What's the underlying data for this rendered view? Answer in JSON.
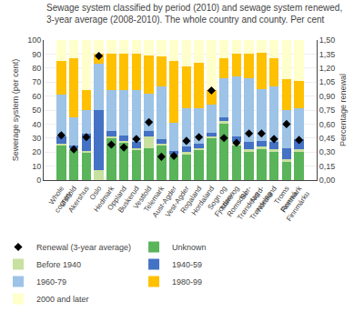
{
  "chart_data": {
    "type": "bar",
    "stacked": true,
    "title": "Sewage system classified by period (2010) and sewage system renewed,\n3-year average (2008-2010). The whole country and county. Per cent",
    "y_label": "Sewerage system (per cent)",
    "y2_label": "Percentage renewal",
    "categories": [
      "Whole\ncountry",
      "Østfold",
      "Akershus",
      "Oslo",
      "Hedmark",
      "Oppland",
      "Buskerud",
      "Vestfold",
      "Telemark",
      "Aust-Agder",
      "Vest-Agder",
      "Rogaland",
      "Hordaland",
      "Sogn og\nFjordane",
      "Møre og\nRomsdal",
      "Sør-\nTrøndelag",
      "Nord-\nTrøndelag",
      "Nordland",
      "Troms\nRomsá",
      "Finnmark\nFinnmárku"
    ],
    "series": [
      {
        "name": "Renewal (3-year average)",
        "type": "scatter",
        "marker": "diamond",
        "color": "#000000",
        "axis": "y2",
        "values": [
          0.48,
          0.33,
          0.46,
          1.33,
          0.38,
          0.35,
          0.44,
          0.62,
          0.25,
          0.26,
          0.42,
          0.46,
          0.96,
          0.45,
          0.4,
          0.5,
          0.5,
          0.44,
          0.6,
          0.43
        ]
      },
      {
        "name": "Unknown",
        "type": "bar",
        "color": "#5ab45a",
        "values": [
          25,
          22,
          20,
          0,
          30,
          27,
          22,
          23,
          25,
          17,
          18,
          22,
          30,
          40,
          25,
          20,
          22,
          20,
          13,
          20
        ]
      },
      {
        "name": "Before 1940",
        "type": "bar",
        "color": "#c8e0a0",
        "values": [
          1,
          1,
          1,
          7,
          1,
          1,
          1,
          8,
          1,
          1,
          2,
          1,
          1,
          2,
          2,
          2,
          2,
          2,
          2,
          2
        ]
      },
      {
        "name": "1940-59",
        "type": "bar",
        "color": "#4472c4",
        "values": [
          5,
          2,
          12,
          43,
          4,
          4,
          4,
          4,
          3,
          3,
          4,
          3,
          3,
          3,
          4,
          5,
          4,
          5,
          8,
          7
        ]
      },
      {
        "name": "1960-79",
        "type": "bar",
        "color": "#9dc3e6",
        "values": [
          30,
          20,
          17,
          33,
          29,
          32,
          37,
          27,
          38,
          20,
          27,
          25,
          20,
          28,
          43,
          46,
          37,
          40,
          27,
          22
        ]
      },
      {
        "name": "1980-99",
        "type": "bar",
        "color": "#ffc000",
        "values": [
          24,
          42,
          14,
          7,
          26,
          26,
          26,
          27,
          21,
          44,
          30,
          33,
          10,
          14,
          16,
          17,
          26,
          20,
          22,
          20
        ]
      },
      {
        "name": "2000 and later",
        "type": "bar",
        "color": "#ffffcc",
        "values": [
          15,
          13,
          36,
          10,
          10,
          10,
          10,
          11,
          12,
          15,
          19,
          16,
          36,
          13,
          10,
          10,
          9,
          13,
          28,
          29
        ]
      }
    ],
    "ylim": [
      0,
      100
    ],
    "yticks": [
      0,
      10,
      20,
      30,
      40,
      50,
      60,
      70,
      80,
      90,
      100
    ],
    "y2lim": [
      0,
      1.5
    ],
    "y2ticks": [
      {
        "value": 0.0,
        "label": "0,00"
      },
      {
        "value": 0.15,
        "label": "0,15"
      },
      {
        "value": 0.3,
        "label": "0,30"
      },
      {
        "value": 0.45,
        "label": "0,45"
      },
      {
        "value": 0.6,
        "label": "0,60"
      },
      {
        "value": 0.75,
        "label": "0,75"
      },
      {
        "value": 0.9,
        "label": "0,90"
      },
      {
        "value": 1.05,
        "label": "1,05"
      },
      {
        "value": 1.2,
        "label": "1,20"
      },
      {
        "value": 1.35,
        "label": "1,35"
      },
      {
        "value": 1.5,
        "label": "1,50"
      }
    ],
    "grid": true,
    "legend": "lower left"
  }
}
